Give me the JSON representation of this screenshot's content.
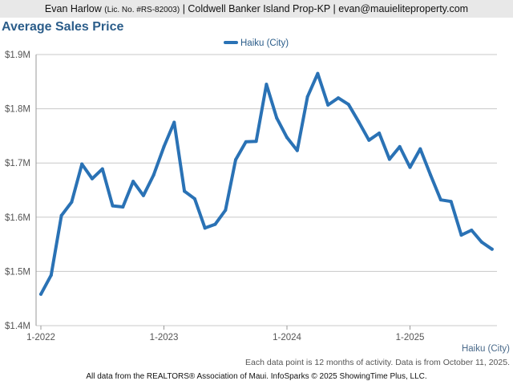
{
  "header": {
    "agent": "Evan Harlow",
    "license": "(Lic. No. #RS-82003)",
    "rest": "| Coldwell Banker Island Prop-KP | evan@mauieliteproperty.com"
  },
  "footer": {
    "area": "Haiku (City)",
    "note": "Each data point is 12 months of activity. Data is from October 11, 2025.",
    "source": "All data from the REALTORS® Association of Maui. InfoSparks © 2025 ShowingTime Plus, LLC."
  },
  "colors": {
    "series": "#2a72b5",
    "title": "#2b5d8a"
  },
  "chart_data": {
    "type": "line",
    "title": "Average Sales Price",
    "legend": {
      "position": "top-center"
    },
    "grid": true,
    "ylim": [
      1400000,
      1900000
    ],
    "yticks": [
      {
        "value": 1400000,
        "label": "$1.4M"
      },
      {
        "value": 1500000,
        "label": "$1.5M"
      },
      {
        "value": 1600000,
        "label": "$1.6M"
      },
      {
        "value": 1700000,
        "label": "$1.7M"
      },
      {
        "value": 1800000,
        "label": "$1.8M"
      },
      {
        "value": 1900000,
        "label": "$1.9M"
      }
    ],
    "xticks": [
      {
        "value": "2022-01",
        "label": "1-2022"
      },
      {
        "value": "2023-01",
        "label": "1-2023"
      },
      {
        "value": "2024-01",
        "label": "1-2024"
      },
      {
        "value": "2025-01",
        "label": "1-2025"
      }
    ],
    "x": [
      "2022-01",
      "2022-02",
      "2022-03",
      "2022-04",
      "2022-05",
      "2022-06",
      "2022-07",
      "2022-08",
      "2022-09",
      "2022-10",
      "2022-11",
      "2022-12",
      "2023-01",
      "2023-02",
      "2023-03",
      "2023-04",
      "2023-05",
      "2023-06",
      "2023-07",
      "2023-08",
      "2023-09",
      "2023-10",
      "2023-11",
      "2023-12",
      "2024-01",
      "2024-02",
      "2024-03",
      "2024-04",
      "2024-05",
      "2024-06",
      "2024-07",
      "2024-08",
      "2024-09",
      "2024-10",
      "2024-11",
      "2024-12",
      "2025-01",
      "2025-02",
      "2025-03",
      "2025-04",
      "2025-05",
      "2025-06",
      "2025-07",
      "2025-08",
      "2025-09"
    ],
    "series": [
      {
        "name": "Haiku (City)",
        "values": [
          1458000,
          1493000,
          1603000,
          1628000,
          1698000,
          1671000,
          1689000,
          1621000,
          1619000,
          1666000,
          1640000,
          1678000,
          1730000,
          1775000,
          1648000,
          1634000,
          1580000,
          1587000,
          1613000,
          1706000,
          1739000,
          1740000,
          1845000,
          1783000,
          1747000,
          1723000,
          1822000,
          1865000,
          1807000,
          1820000,
          1808000,
          1776000,
          1742000,
          1755000,
          1707000,
          1730000,
          1692000,
          1726000,
          1678000,
          1632000,
          1629000,
          1567000,
          1576000,
          1554000,
          1541000
        ]
      }
    ]
  }
}
